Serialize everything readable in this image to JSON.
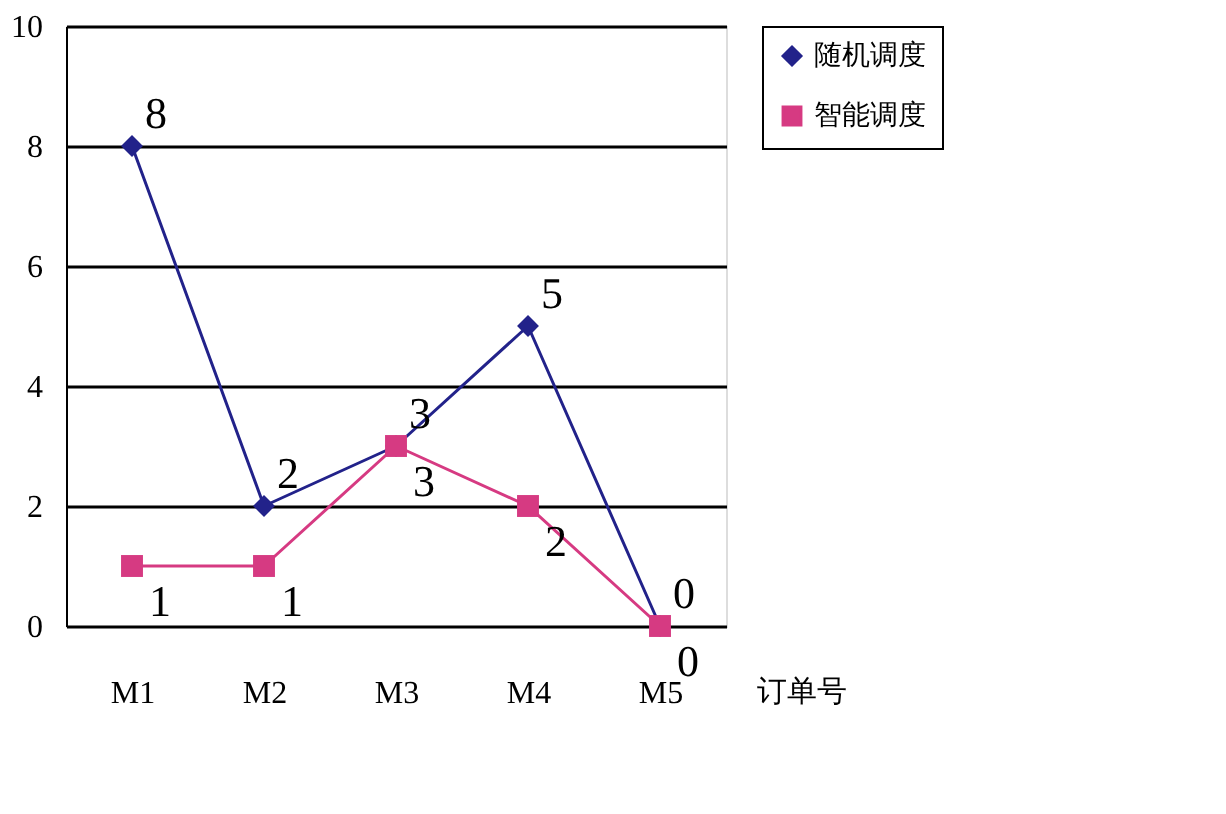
{
  "chart_data": {
    "type": "line",
    "xlabel": "订单号",
    "categories": [
      "M1",
      "M2",
      "M3",
      "M4",
      "M5"
    ],
    "series": [
      {
        "name": "随机调度",
        "color": "#22228a",
        "marker": "diamond",
        "values": [
          8,
          2,
          3,
          5,
          0
        ]
      },
      {
        "name": "智能调度",
        "color": "#d63a82",
        "marker": "square",
        "values": [
          1,
          1,
          3,
          2,
          0
        ]
      }
    ],
    "ylim": [
      0,
      10
    ],
    "yticks": [
      0,
      2,
      4,
      6,
      8,
      10
    ],
    "grid": "y",
    "legend": "right",
    "data_labels": true,
    "line_style": "solid"
  }
}
